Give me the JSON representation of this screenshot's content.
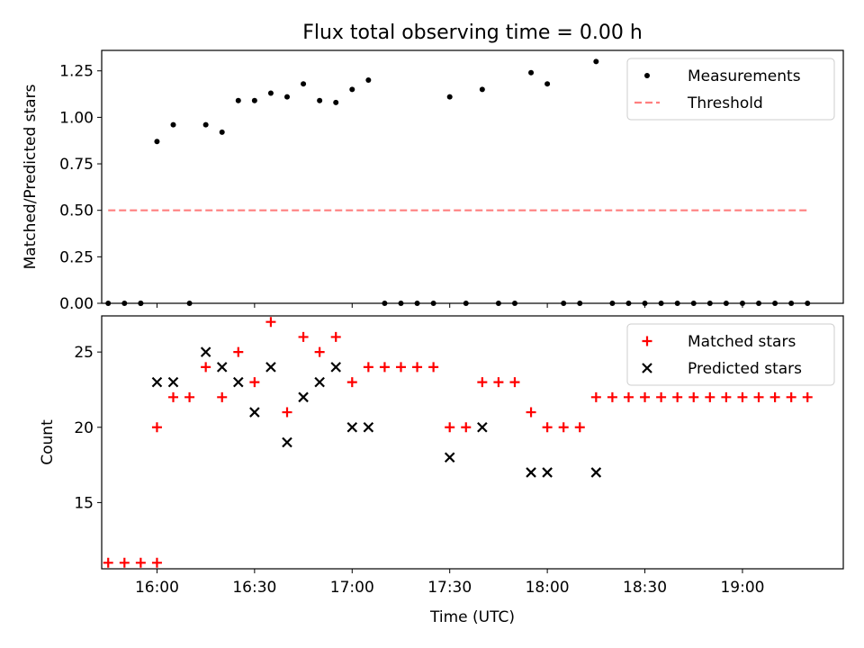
{
  "chart_data": [
    {
      "type": "scatter",
      "title": "Flux total observing time = 0.00 h",
      "xlabel": "",
      "ylabel": "Matched/Predicted stars",
      "xlim": [
        "15:43",
        "19:31"
      ],
      "ylim": [
        0,
        1.36
      ],
      "yticks": [
        "0.00",
        "0.25",
        "0.50",
        "0.75",
        "1.00",
        "1.25"
      ],
      "legend_position": "upper right",
      "series": [
        {
          "name": "Measurements",
          "marker": "dot",
          "color": "#000000",
          "points": [
            [
              "15:50",
              0.0
            ],
            [
              "15:55",
              0.0
            ],
            [
              "16:00",
              0.87
            ],
            [
              "16:05",
              0.96
            ],
            [
              "16:10",
              0.0
            ],
            [
              "16:15",
              0.96
            ],
            [
              "16:20",
              0.92
            ],
            [
              "16:25",
              1.09
            ],
            [
              "16:30",
              1.09
            ],
            [
              "16:35",
              1.13
            ],
            [
              "16:40",
              1.11
            ],
            [
              "16:45",
              1.18
            ],
            [
              "16:50",
              1.09
            ],
            [
              "16:55",
              1.08
            ],
            [
              "17:00",
              1.15
            ],
            [
              "17:05",
              1.2
            ],
            [
              "17:10",
              0.0
            ],
            [
              "17:15",
              0.0
            ],
            [
              "17:20",
              0.0
            ],
            [
              "17:25",
              0.0
            ],
            [
              "17:30",
              1.11
            ],
            [
              "17:35",
              0.0
            ],
            [
              "17:40",
              1.15
            ],
            [
              "17:45",
              0.0
            ],
            [
              "17:50",
              0.0
            ],
            [
              "17:55",
              1.24
            ],
            [
              "18:00",
              1.18
            ],
            [
              "18:05",
              0.0
            ],
            [
              "18:10",
              0.0
            ],
            [
              "18:15",
              1.3
            ],
            [
              "18:20",
              0.0
            ],
            [
              "18:25",
              0.0
            ],
            [
              "18:30",
              0.0
            ],
            [
              "18:35",
              0.0
            ],
            [
              "18:40",
              0.0
            ],
            [
              "18:45",
              0.0
            ],
            [
              "18:50",
              0.0
            ],
            [
              "18:55",
              0.0
            ],
            [
              "19:00",
              0.0
            ],
            [
              "19:05",
              0.0
            ],
            [
              "19:10",
              0.0
            ],
            [
              "19:15",
              0.0
            ],
            [
              "19:20",
              0.0
            ],
            [
              "15:45",
              0.0
            ],
            [
              "15:55",
              0.0
            ]
          ]
        },
        {
          "name": "Threshold",
          "marker": "dashed-line",
          "color": "#ff7f7f",
          "points": [
            [
              "15:45",
              0.5
            ],
            [
              "19:20",
              0.5
            ]
          ]
        }
      ]
    },
    {
      "type": "scatter",
      "title": "",
      "xlabel": "Time (UTC)",
      "ylabel": "Count",
      "xlim": [
        "15:43",
        "19:31"
      ],
      "ylim": [
        10.6,
        27.4
      ],
      "yticks": [
        "15",
        "20",
        "25"
      ],
      "xticks": [
        "16:00",
        "16:30",
        "17:00",
        "17:30",
        "18:00",
        "18:30",
        "19:00"
      ],
      "legend_position": "upper right",
      "series": [
        {
          "name": "Matched stars",
          "marker": "plus",
          "color": "#ff0000",
          "points": [
            [
              "15:45",
              11
            ],
            [
              "15:50",
              11
            ],
            [
              "15:55",
              11
            ],
            [
              "16:00",
              11
            ],
            [
              "16:00",
              20
            ],
            [
              "16:05",
              22
            ],
            [
              "16:10",
              22
            ],
            [
              "16:15",
              24
            ],
            [
              "16:20",
              22
            ],
            [
              "16:25",
              25
            ],
            [
              "16:30",
              23
            ],
            [
              "16:35",
              27
            ],
            [
              "16:40",
              21
            ],
            [
              "16:45",
              26
            ],
            [
              "16:50",
              25
            ],
            [
              "16:55",
              26
            ],
            [
              "17:00",
              23
            ],
            [
              "17:05",
              24
            ],
            [
              "17:10",
              24
            ],
            [
              "17:15",
              24
            ],
            [
              "17:20",
              24
            ],
            [
              "17:25",
              24
            ],
            [
              "17:30",
              20
            ],
            [
              "17:35",
              20
            ],
            [
              "17:40",
              23
            ],
            [
              "17:45",
              23
            ],
            [
              "17:50",
              23
            ],
            [
              "17:55",
              21
            ],
            [
              "18:00",
              20
            ],
            [
              "18:05",
              20
            ],
            [
              "18:10",
              20
            ],
            [
              "18:15",
              22
            ],
            [
              "18:20",
              22
            ],
            [
              "18:25",
              22
            ],
            [
              "18:30",
              22
            ],
            [
              "18:35",
              22
            ],
            [
              "18:40",
              22
            ],
            [
              "18:45",
              22
            ],
            [
              "18:50",
              22
            ],
            [
              "18:55",
              22
            ],
            [
              "19:00",
              22
            ],
            [
              "19:05",
              22
            ],
            [
              "19:10",
              22
            ],
            [
              "19:15",
              22
            ],
            [
              "19:20",
              22
            ]
          ]
        },
        {
          "name": "Predicted stars",
          "marker": "cross",
          "color": "#000000",
          "points": [
            [
              "16:00",
              23
            ],
            [
              "16:05",
              23
            ],
            [
              "16:15",
              25
            ],
            [
              "16:20",
              24
            ],
            [
              "16:25",
              23
            ],
            [
              "16:30",
              21
            ],
            [
              "16:35",
              24
            ],
            [
              "16:40",
              19
            ],
            [
              "16:45",
              22
            ],
            [
              "16:50",
              23
            ],
            [
              "16:55",
              24
            ],
            [
              "17:00",
              20
            ],
            [
              "17:05",
              20
            ],
            [
              "17:30",
              18
            ],
            [
              "17:40",
              20
            ],
            [
              "17:55",
              17
            ],
            [
              "18:00",
              17
            ],
            [
              "18:15",
              17
            ]
          ]
        }
      ]
    }
  ]
}
